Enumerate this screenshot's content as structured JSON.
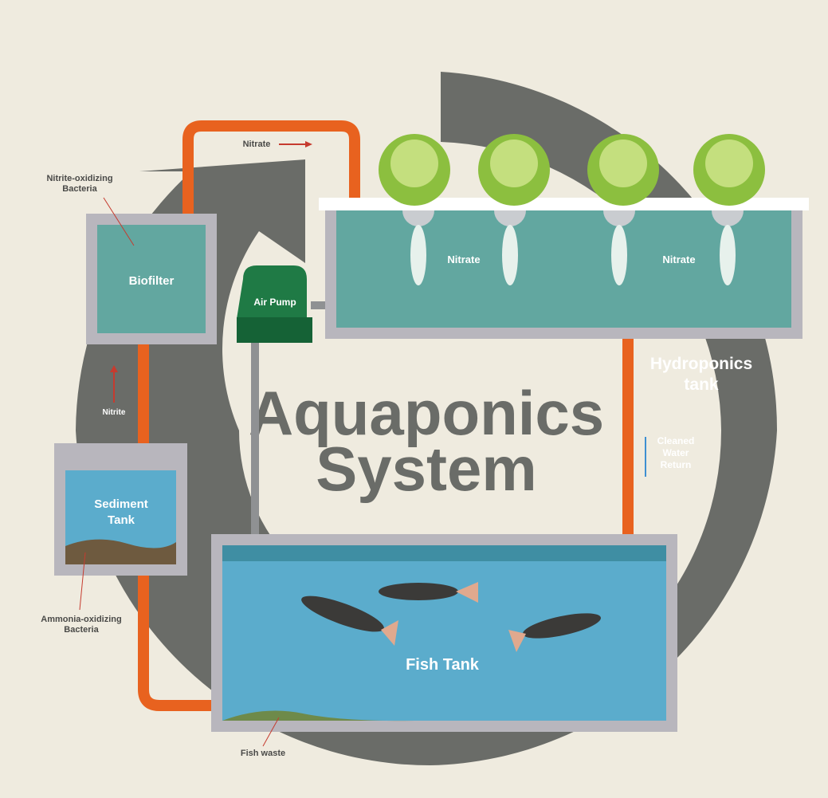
{
  "title": {
    "lines": [
      "Aquaponics",
      "System"
    ]
  },
  "biofilter": "Biofilter",
  "nitrite_bacteria": {
    "lines": [
      "Nitrite-oxidizing",
      "Bacteria"
    ]
  },
  "nitrite": "Nitrite",
  "sediment_tank": {
    "lines": [
      "Sediment",
      "Tank"
    ]
  },
  "ammonia_bacteria": {
    "lines": [
      "Ammonia-oxidizing",
      "Bacteria"
    ]
  },
  "fish_waste": "Fish waste",
  "fish_tank": "Fish Tank",
  "air_pump": "Air Pump",
  "nitrate_pipe": "Nitrate",
  "nitrate_labels": [
    "Nitrate",
    "Nitrate"
  ],
  "hydroponics_tank": {
    "lines": [
      "Hydroponics",
      "tank"
    ]
  },
  "cleaned_water": {
    "lines": [
      "Cleaned",
      "Water",
      "Return"
    ]
  }
}
